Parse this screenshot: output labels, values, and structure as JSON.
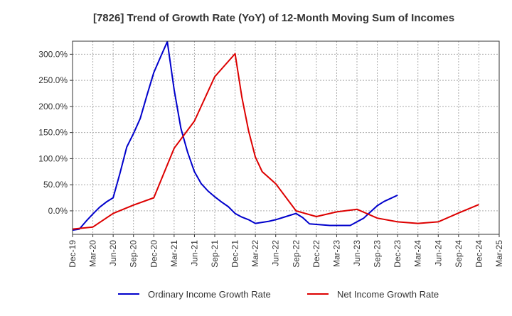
{
  "chart_data": {
    "type": "line",
    "title": "[7826]  Trend of Growth Rate (YoY) of 12-Month Moving Sum of Incomes",
    "xlabel": "",
    "ylabel": "",
    "x_tick_labels": [
      "Dec-19",
      "Mar-20",
      "Jun-20",
      "Sep-20",
      "Dec-20",
      "Mar-21",
      "Jun-21",
      "Sep-21",
      "Dec-21",
      "Mar-22",
      "Jun-22",
      "Sep-22",
      "Dec-22",
      "Mar-23",
      "Jun-23",
      "Sep-23",
      "Dec-23",
      "Mar-24",
      "Jun-24",
      "Sep-24",
      "Dec-24",
      "Mar-25"
    ],
    "y_ticks": [
      0,
      50,
      100,
      150,
      200,
      250,
      300
    ],
    "y_tick_labels": [
      "0.0%",
      "50.0%",
      "100.0%",
      "150.0%",
      "200.0%",
      "250.0%",
      "300.0%"
    ],
    "ylim": [
      -45,
      325
    ],
    "grid": true,
    "legend_position": "bottom",
    "series": [
      {
        "name": "Ordinary Income Growth Rate",
        "color": "#0000cc",
        "points": [
          [
            0,
            -37
          ],
          [
            1,
            -35
          ],
          [
            2,
            -20
          ],
          [
            3,
            -6
          ],
          [
            4,
            7
          ],
          [
            5,
            17
          ],
          [
            6,
            25
          ],
          [
            7,
            72
          ],
          [
            8,
            122
          ],
          [
            9,
            148
          ],
          [
            10,
            177
          ],
          [
            11,
            222
          ],
          [
            12,
            265
          ],
          [
            13,
            295
          ],
          [
            14,
            324
          ],
          [
            15,
            232
          ],
          [
            16,
            158
          ],
          [
            17,
            112
          ],
          [
            18,
            75
          ],
          [
            19,
            52
          ],
          [
            20,
            38
          ],
          [
            21,
            27
          ],
          [
            22,
            17
          ],
          [
            23,
            8
          ],
          [
            24,
            -5
          ],
          [
            25,
            -12
          ],
          [
            26,
            -17
          ],
          [
            27,
            -24
          ],
          [
            28,
            -22
          ],
          [
            29,
            -20
          ],
          [
            30,
            -17
          ],
          [
            31,
            -13
          ],
          [
            32,
            -9
          ],
          [
            33,
            -5
          ],
          [
            34,
            -13
          ],
          [
            35,
            -25
          ],
          [
            36,
            -26
          ],
          [
            37,
            -27
          ],
          [
            38,
            -28
          ],
          [
            39,
            -28
          ],
          [
            40,
            -28
          ],
          [
            41,
            -28
          ],
          [
            42,
            -21
          ],
          [
            43,
            -14
          ],
          [
            44,
            -2
          ],
          [
            45,
            10
          ],
          [
            46,
            18
          ],
          [
            47,
            24
          ],
          [
            48,
            30
          ]
        ]
      },
      {
        "name": "Net Income Growth Rate",
        "color": "#dd0000",
        "points": [
          [
            0,
            -35
          ],
          [
            3,
            -31
          ],
          [
            6,
            -5
          ],
          [
            9,
            11
          ],
          [
            12,
            25
          ],
          [
            15,
            120
          ],
          [
            18,
            172
          ],
          [
            21,
            257
          ],
          [
            24,
            301
          ],
          [
            25,
            218
          ],
          [
            26,
            153
          ],
          [
            27,
            103
          ],
          [
            28,
            75
          ],
          [
            30,
            52
          ],
          [
            33,
            0
          ],
          [
            36,
            -11
          ],
          [
            39,
            -2
          ],
          [
            42,
            3
          ],
          [
            45,
            -14
          ],
          [
            48,
            -21
          ],
          [
            51,
            -24
          ],
          [
            54,
            -21
          ],
          [
            57,
            -4
          ],
          [
            60,
            12
          ]
        ]
      }
    ]
  }
}
